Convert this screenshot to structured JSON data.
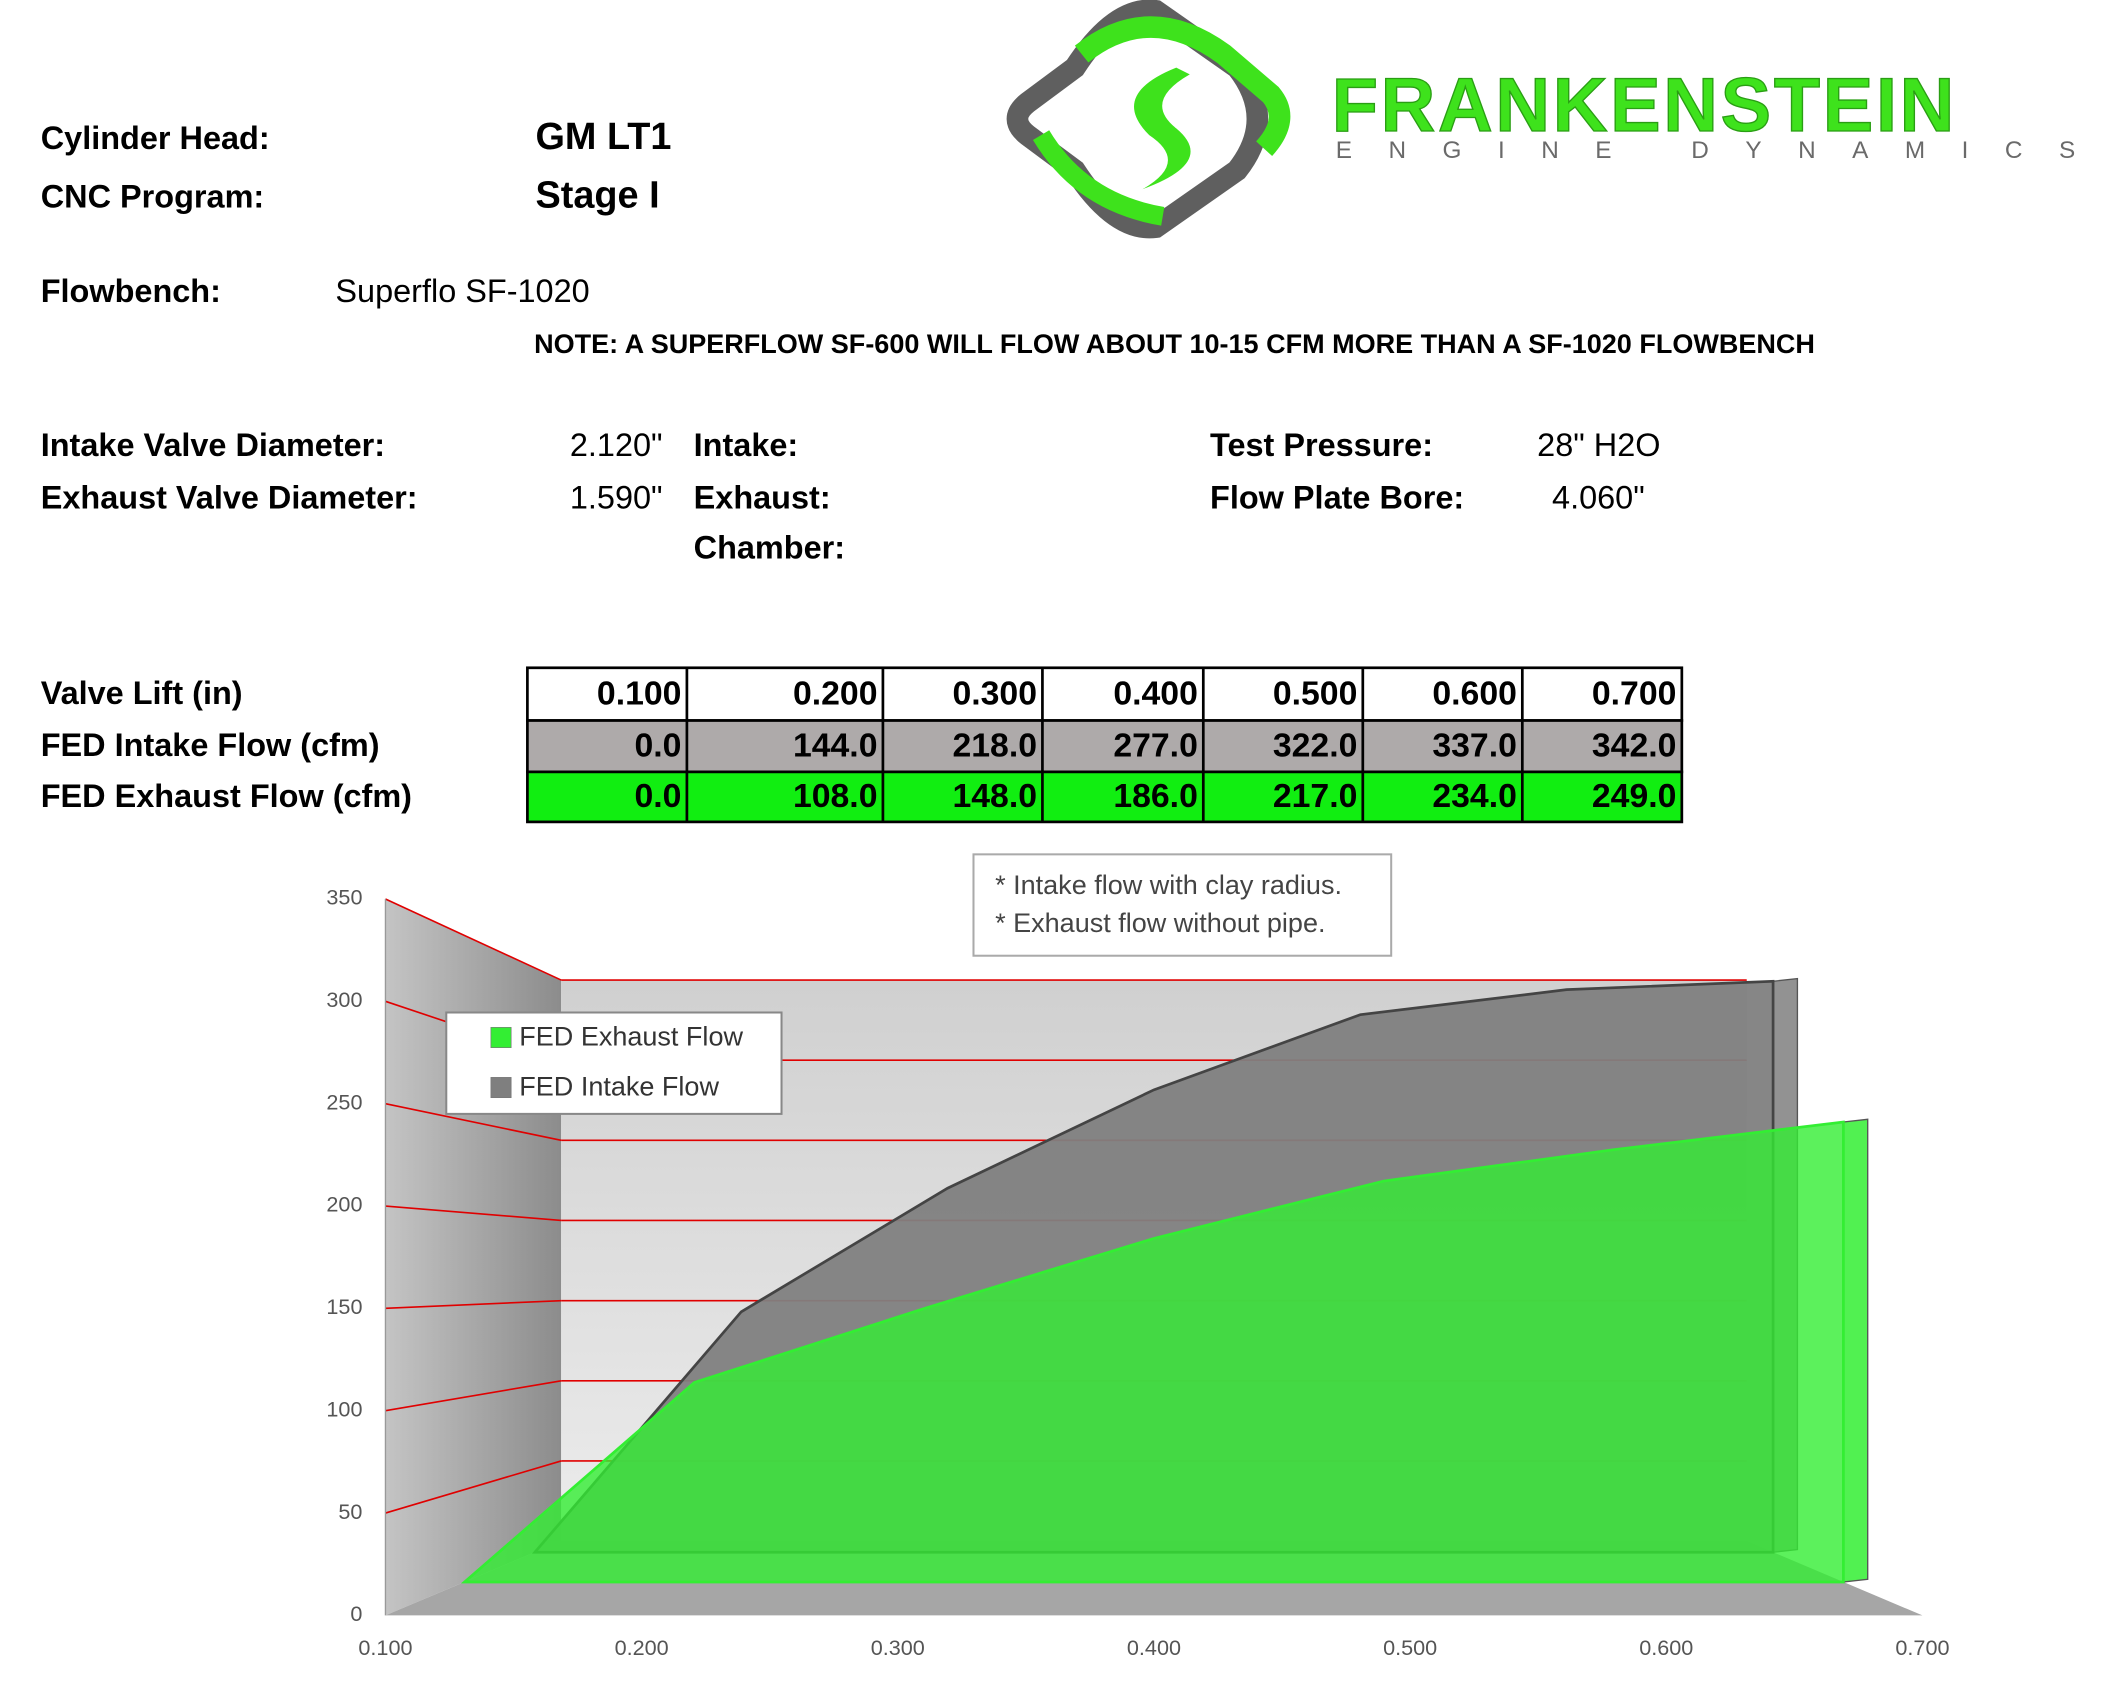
{
  "logo": {
    "title": "FRANKENSTEIN",
    "subtitle": "ENGINE DYNAMICS"
  },
  "header": {
    "cylinder_head": {
      "label": "Cylinder Head:",
      "value": "GM LT1"
    },
    "cnc_program": {
      "label": "CNC Program:",
      "value": "Stage I"
    },
    "flowbench": {
      "label": "Flowbench:",
      "value": "Superflo SF-1020"
    },
    "note": "NOTE: A SUPERFLOW SF-600 WILL FLOW ABOUT 10-15 CFM MORE THAN A SF-1020 FLOWBENCH"
  },
  "specs": {
    "intake_valve_diameter": {
      "label": "Intake Valve Diameter:",
      "value": "2.120\""
    },
    "exhaust_valve_diameter": {
      "label": "Exhaust Valve Diameter:",
      "value": "1.590\""
    },
    "intake": {
      "label": "Intake:"
    },
    "exhaust": {
      "label": "Exhaust:"
    },
    "chamber": {
      "label": "Chamber:"
    },
    "test_pressure": {
      "label": "Test Pressure:",
      "value": "28\" H2O"
    },
    "flow_plate_bore": {
      "label": "Flow Plate Bore:",
      "value": "4.060\""
    }
  },
  "table": {
    "rows": [
      [
        "Valve Lift (in)",
        "0.100",
        "0.200",
        "0.300",
        "0.400",
        "0.500",
        "0.600",
        "0.700"
      ],
      [
        "FED Intake Flow (cfm)",
        "0.0",
        "144.0",
        "218.0",
        "277.0",
        "322.0",
        "337.0",
        "342.0"
      ],
      [
        "FED Exhaust Flow (cfm)",
        "0.0",
        "108.0",
        "148.0",
        "186.0",
        "217.0",
        "234.0",
        "249.0"
      ]
    ]
  },
  "chart_data": {
    "type": "area",
    "x": [
      0.1,
      0.2,
      0.3,
      0.4,
      0.5,
      0.6,
      0.7
    ],
    "series": [
      {
        "name": "FED Intake Flow",
        "color": "#7f7f7f",
        "values": [
          0,
          144,
          218,
          277,
          322,
          337,
          342
        ]
      },
      {
        "name": "FED Exhaust Flow",
        "color": "#33ee33",
        "values": [
          0,
          108,
          148,
          186,
          217,
          234,
          249
        ]
      }
    ],
    "xlim": [
      0.1,
      0.7
    ],
    "xticks": [
      {
        "value": 0.1,
        "label": "0.100"
      },
      {
        "value": 0.2,
        "label": "0.200"
      },
      {
        "value": 0.3,
        "label": "0.300"
      },
      {
        "value": 0.4,
        "label": "0.400"
      },
      {
        "value": 0.5,
        "label": "0.500"
      },
      {
        "value": 0.6,
        "label": "0.600"
      },
      {
        "value": 0.7,
        "label": "0.700"
      }
    ],
    "ylim": [
      0,
      350
    ],
    "yticks": [
      0,
      50,
      100,
      150,
      200,
      250,
      300,
      350
    ],
    "grid": true,
    "grid_color": "#e00000",
    "legend": "top-left",
    "annotations": [
      "* Intake flow with clay radius.",
      "* Exhaust flow without pipe."
    ]
  }
}
